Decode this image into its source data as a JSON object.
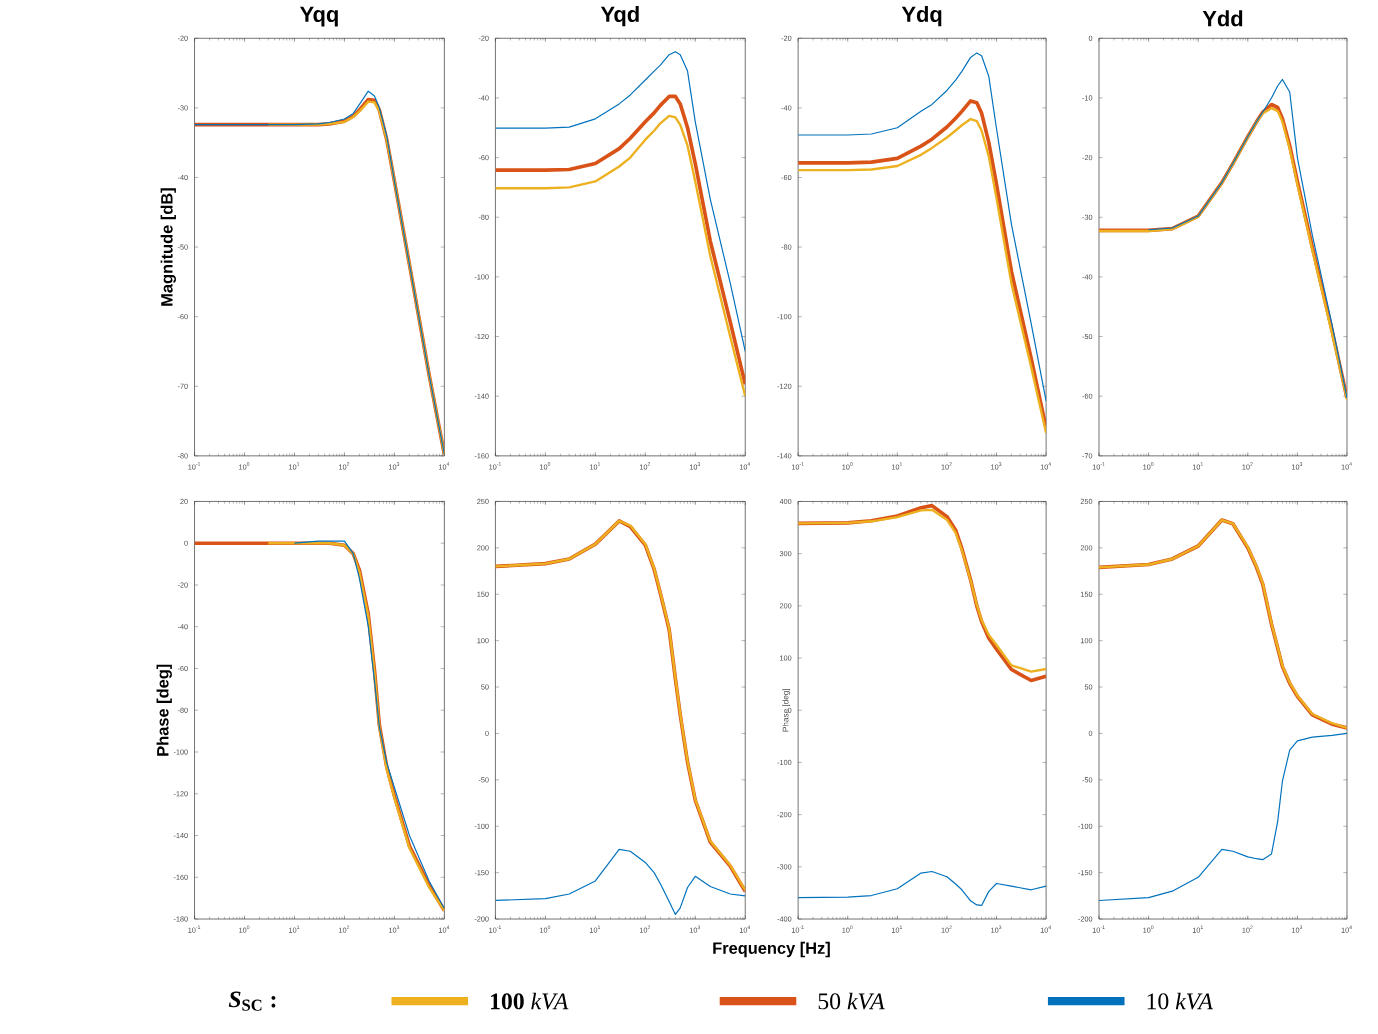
{
  "chart_data": [
    {
      "type": "line",
      "title": "Yqq",
      "ylabel": "Magnitude [dB]",
      "log": "x",
      "x": [
        0.1,
        1,
        3,
        10,
        30,
        50,
        100,
        150,
        200,
        300,
        400,
        500,
        700,
        1000,
        2000,
        5000,
        10000
      ],
      "xlim": [
        0.1,
        10000
      ],
      "xticks": [
        {
          "value": 0.1,
          "label": "10$^{-1}$"
        },
        {
          "value": 1,
          "label": "10$^{0}$"
        },
        {
          "value": 10,
          "label": "10$^{1}$"
        },
        {
          "value": 100,
          "label": "10$^{2}$"
        },
        {
          "value": 1000,
          "label": "10$^{3}$"
        },
        {
          "value": 10000,
          "label": "10$^{4}$"
        }
      ],
      "ylim": [
        -80,
        -20
      ],
      "yticks": [
        -80,
        -70,
        -60,
        -50,
        -40,
        -30,
        -20
      ],
      "series": [
        {
          "color": "#edb120",
          "values": [
            null,
            null,
            -32.4,
            -32.4,
            -32.4,
            -32.3,
            -32.0,
            -31.3,
            -30.5,
            -29.1,
            -29.2,
            -30.5,
            -34.5,
            -40.5,
            -52.5,
            -68.5,
            -79.8
          ]
        },
        {
          "color": "#d95319",
          "values": [
            -32.4,
            -32.4,
            -32.4,
            -32.4,
            -32.4,
            -32.3,
            -31.9,
            -31.2,
            -30.3,
            -28.8,
            -28.9,
            -30.3,
            -34.5,
            -40.5,
            -52.5,
            -68.5,
            -79.8
          ]
        },
        {
          "color": "#0072bd",
          "values": [
            -32.4,
            -32.4,
            -32.4,
            -32.4,
            -32.3,
            -32.1,
            -31.6,
            -30.8,
            -29.5,
            -27.6,
            -28.3,
            -30,
            -34,
            -40.5,
            -52.5,
            -68.5,
            -79.8
          ]
        }
      ]
    },
    {
      "type": "line",
      "title": "Yqd",
      "log": "x",
      "x": [
        0.1,
        1,
        3,
        10,
        30,
        50,
        100,
        150,
        200,
        300,
        400,
        500,
        700,
        1000,
        2000,
        5000,
        10000
      ],
      "xlim": [
        0.1,
        10000
      ],
      "xticks": [
        {
          "value": 0.1,
          "label": "10$^{-1}$"
        },
        {
          "value": 1,
          "label": "10$^{0}$"
        },
        {
          "value": 10,
          "label": "10$^{1}$"
        },
        {
          "value": 100,
          "label": "10$^{2}$"
        },
        {
          "value": 1000,
          "label": "10$^{3}$"
        },
        {
          "value": 10000,
          "label": "10$^{4}$"
        }
      ],
      "ylim": [
        -160,
        -20
      ],
      "yticks": [
        -160,
        -140,
        -120,
        -100,
        -80,
        -60,
        -40,
        -20
      ],
      "series": [
        {
          "color": "#edb120",
          "values": [
            -70.3,
            -70.3,
            -70,
            -68,
            -63,
            -60,
            -54,
            -51,
            -48.5,
            -46,
            -46.5,
            -49,
            -56,
            -68,
            -93,
            -120,
            -140
          ]
        },
        {
          "color": "#d95319",
          "values": [
            -64.2,
            -64.2,
            -64,
            -62,
            -57,
            -53.5,
            -48,
            -45,
            -42.5,
            -39.5,
            -39.5,
            -42,
            -50,
            -62,
            -88,
            -115,
            -136
          ]
        },
        {
          "color": "#0072bd",
          "values": [
            -50.1,
            -50.1,
            -49.8,
            -47,
            -42,
            -39,
            -34,
            -31,
            -29,
            -25.5,
            -24.5,
            -25.5,
            -31,
            -48,
            -74,
            -102,
            -125
          ]
        }
      ]
    },
    {
      "type": "line",
      "title": "Ydq",
      "log": "x",
      "x": [
        0.1,
        1,
        3,
        10,
        30,
        50,
        100,
        150,
        200,
        300,
        400,
        500,
        700,
        1000,
        2000,
        5000,
        10000
      ],
      "xlim": [
        0.1,
        10000
      ],
      "xticks": [
        {
          "value": 0.1,
          "label": "10$^{-1}$"
        },
        {
          "value": 1,
          "label": "10$^{0}$"
        },
        {
          "value": 10,
          "label": "10$^{1}$"
        },
        {
          "value": 100,
          "label": "10$^{2}$"
        },
        {
          "value": 1000,
          "label": "10$^{3}$"
        },
        {
          "value": 10000,
          "label": "10$^{4}$"
        }
      ],
      "ylim": [
        -140,
        -20
      ],
      "yticks": [
        -140,
        -120,
        -100,
        -80,
        -60,
        -40,
        -20
      ],
      "series": [
        {
          "color": "#edb120",
          "values": [
            -57.9,
            -57.9,
            -57.7,
            -56.7,
            -53.5,
            -51.5,
            -48.5,
            -46.5,
            -45,
            -43.2,
            -43.8,
            -46.5,
            -54,
            -66,
            -90.5,
            -114.5,
            -133.4
          ]
        },
        {
          "color": "#d95319",
          "values": [
            -55.8,
            -55.8,
            -55.6,
            -54.5,
            -51,
            -49,
            -45.5,
            -43,
            -41,
            -38,
            -38.5,
            -41.5,
            -50,
            -62,
            -87,
            -112,
            -132
          ]
        },
        {
          "color": "#0072bd",
          "values": [
            -47.8,
            -47.8,
            -47.5,
            -45.7,
            -41,
            -39,
            -35,
            -32,
            -29.5,
            -25.5,
            -24.2,
            -25,
            -31,
            -46,
            -73.5,
            -102,
            -124.3
          ]
        }
      ]
    },
    {
      "type": "line",
      "title": "Ydd",
      "log": "x",
      "x": [
        0.1,
        1,
        3,
        10,
        30,
        50,
        100,
        150,
        200,
        300,
        400,
        500,
        700,
        1000,
        2000,
        5000,
        10000
      ],
      "xlim": [
        0.1,
        10000
      ],
      "xticks": [
        {
          "value": 0.1,
          "label": "10$^{-1}$"
        },
        {
          "value": 1,
          "label": "10$^{0}$"
        },
        {
          "value": 10,
          "label": "10$^{1}$"
        },
        {
          "value": 100,
          "label": "10$^{2}$"
        },
        {
          "value": 1000,
          "label": "10$^{3}$"
        },
        {
          "value": 10000,
          "label": "10$^{4}$"
        }
      ],
      "ylim": [
        -70,
        0
      ],
      "yticks": [
        -70,
        -60,
        -50,
        -40,
        -30,
        -20,
        -10,
        0
      ],
      "series": [
        {
          "color": "#edb120",
          "values": [
            -32.3,
            -32.3,
            -32,
            -29.9,
            -24.3,
            -21.1,
            -16.6,
            -14.1,
            -12.6,
            -11.7,
            -12.2,
            -14,
            -18.5,
            -24.5,
            -35.5,
            -49.5,
            -60.5
          ]
        },
        {
          "color": "#d95319",
          "values": [
            -32.2,
            -32.2,
            -31.9,
            -29.8,
            -24.2,
            -21,
            -16.5,
            -14,
            -12.4,
            -11.1,
            -11.6,
            -13.5,
            -18,
            -24,
            -35,
            -49,
            -60.3
          ]
        },
        {
          "color": "#0072bd",
          "values": [
            null,
            -32.1,
            -31.8,
            -29.8,
            -24.2,
            -21,
            -16.5,
            -14,
            -12.4,
            -10,
            -8,
            -6.9,
            -9,
            -20,
            -33,
            -48,
            -60.3
          ]
        }
      ]
    },
    {
      "type": "line",
      "ylabel": "Phase [deg]",
      "log": "x",
      "legend": "bottom",
      "legend_title": "*S*$_{SC}$ :",
      "x": [
        0.1,
        1,
        3,
        10,
        30,
        50,
        100,
        150,
        200,
        300,
        400,
        500,
        700,
        1000,
        2000,
        5000,
        10000
      ],
      "xlim": [
        0.1,
        10000
      ],
      "xticks": [
        {
          "value": 0.1,
          "label": "10$^{-1}$"
        },
        {
          "value": 1,
          "label": "10$^{0}$"
        },
        {
          "value": 10,
          "label": "10$^{1}$"
        },
        {
          "value": 100,
          "label": "10$^{2}$"
        },
        {
          "value": 1000,
          "label": "10$^{3}$"
        },
        {
          "value": 10000,
          "label": "10$^{4}$"
        }
      ],
      "ylim": [
        -180,
        20
      ],
      "yticks": [
        -180,
        -160,
        -140,
        -120,
        -100,
        -80,
        -60,
        -40,
        -20,
        0,
        20
      ],
      "series": [
        {
          "name": "**100** *kVA*",
          "color": "#edb120",
          "values": [
            null,
            null,
            0,
            0,
            0,
            0,
            -1,
            -5,
            -14,
            -35,
            -62,
            -88,
            -108,
            -122,
            -146,
            -165,
            -176
          ]
        },
        {
          "name": "50 *kVA*",
          "color": "#d95319",
          "values": [
            0,
            0,
            0,
            0,
            0,
            0,
            -1,
            -5,
            -13,
            -34,
            -61,
            -87,
            -107,
            -121,
            -145,
            -164,
            -176
          ]
        },
        {
          "name": "10 *kVA*",
          "color": "#0072bd",
          "values": [
            null,
            null,
            null,
            0,
            1,
            1,
            1,
            -5,
            -17,
            -40,
            -66,
            -88,
            -105,
            -117,
            -140,
            -162,
            -175
          ]
        }
      ]
    },
    {
      "type": "line",
      "xlabel": "Frequency [Hz]",
      "log": "x",
      "x": [
        0.1,
        1,
        3,
        10,
        30,
        50,
        100,
        150,
        200,
        300,
        400,
        500,
        700,
        1000,
        2000,
        5000,
        10000
      ],
      "xlim": [
        0.1,
        10000
      ],
      "xticks": [
        {
          "value": 0.1,
          "label": "10$^{-1}$"
        },
        {
          "value": 1,
          "label": "10$^{0}$"
        },
        {
          "value": 10,
          "label": "10$^{1}$"
        },
        {
          "value": 100,
          "label": "10$^{2}$"
        },
        {
          "value": 1000,
          "label": "10$^{3}$"
        },
        {
          "value": 10000,
          "label": "10$^{4}$"
        }
      ],
      "ylim": [
        -200,
        250
      ],
      "yticks": [
        -200,
        -150,
        -100,
        -50,
        0,
        50,
        100,
        150,
        200,
        250
      ],
      "series": [
        {
          "color": "#edb120",
          "values": [
            180,
            183,
            188,
            204,
            229,
            224,
            204,
            178,
            152,
            113,
            60,
            21,
            -30,
            -71,
            -116,
            -142,
            -169
          ]
        },
        {
          "color": "#d95319",
          "values": [
            180,
            183,
            188,
            204,
            229,
            223,
            203,
            177,
            151,
            112,
            59,
            20,
            -31,
            -72,
            -117,
            -143,
            -170
          ]
        },
        {
          "color": "#0072bd",
          "values": [
            -180,
            -178,
            -173,
            -159,
            -125,
            -127,
            -139,
            -150,
            -162,
            -181,
            -195,
            -188,
            -166,
            -154,
            -165,
            -173,
            -175
          ]
        }
      ]
    },
    {
      "type": "line",
      "ylabel": "Phase [deg]",
      "log": "x",
      "x": [
        0.1,
        1,
        3,
        10,
        30,
        50,
        100,
        150,
        200,
        300,
        400,
        500,
        700,
        1000,
        2000,
        5000,
        10000
      ],
      "xlim": [
        0.1,
        10000
      ],
      "xticks": [
        {
          "value": 0.1,
          "label": "10$^{-1}$"
        },
        {
          "value": 1,
          "label": "10$^{0}$"
        },
        {
          "value": 10,
          "label": "10$^{1}$"
        },
        {
          "value": 100,
          "label": "10$^{2}$"
        },
        {
          "value": 1000,
          "label": "10$^{3}$"
        },
        {
          "value": 10000,
          "label": "10$^{4}$"
        }
      ],
      "ylim": [
        -400,
        400
      ],
      "yticks": [
        -400,
        -300,
        -200,
        -100,
        0,
        100,
        200,
        300,
        400
      ],
      "series": [
        {
          "color": "#edb120",
          "values": [
            358,
            359,
            362,
            370,
            383,
            384,
            365,
            340,
            307,
            249,
            202,
            173,
            144,
            125,
            86,
            74,
            79
          ]
        },
        {
          "color": "#d95319",
          "values": [
            358,
            359,
            363,
            372,
            388,
            392,
            371,
            345,
            310,
            250,
            200,
            170,
            138,
            117,
            78,
            57,
            65
          ]
        },
        {
          "color": "#0072bd",
          "values": [
            -359,
            -358,
            -355,
            -342,
            -312,
            -309,
            -319,
            -333,
            -344,
            -365,
            -373,
            -374,
            -347,
            -332,
            -337,
            -344,
            -337
          ]
        }
      ]
    },
    {
      "type": "line",
      "log": "x",
      "x": [
        0.1,
        1,
        3,
        10,
        30,
        50,
        100,
        150,
        200,
        300,
        400,
        500,
        700,
        1000,
        2000,
        5000,
        10000
      ],
      "xlim": [
        0.1,
        10000
      ],
      "xticks": [
        {
          "value": 0.1,
          "label": "10$^{-1}$"
        },
        {
          "value": 1,
          "label": "10$^{0}$"
        },
        {
          "value": 10,
          "label": "10$^{1}$"
        },
        {
          "value": 100,
          "label": "10$^{2}$"
        },
        {
          "value": 1000,
          "label": "10$^{3}$"
        },
        {
          "value": 10000,
          "label": "10$^{4}$"
        }
      ],
      "ylim": [
        -200,
        250
      ],
      "yticks": [
        -200,
        -150,
        -100,
        -50,
        0,
        50,
        100,
        150,
        200,
        250
      ],
      "series": [
        {
          "color": "#edb120",
          "values": [
            179,
            182,
            188,
            202,
            230,
            226,
            201,
            180,
            162,
            119,
            93,
            73,
            55,
            41,
            21,
            11,
            6
          ]
        },
        {
          "color": "#d95319",
          "values": [
            179,
            182,
            188,
            202,
            230,
            226,
            200,
            179,
            161,
            118,
            92,
            72,
            54,
            40,
            20,
            10,
            6
          ]
        },
        {
          "color": "#0072bd",
          "values": [
            -180,
            -177,
            -170,
            -155,
            -125,
            -127,
            -133,
            -135,
            -136,
            -130,
            -95,
            -51,
            -18,
            -8,
            -4,
            -2,
            0
          ]
        }
      ]
    }
  ]
}
